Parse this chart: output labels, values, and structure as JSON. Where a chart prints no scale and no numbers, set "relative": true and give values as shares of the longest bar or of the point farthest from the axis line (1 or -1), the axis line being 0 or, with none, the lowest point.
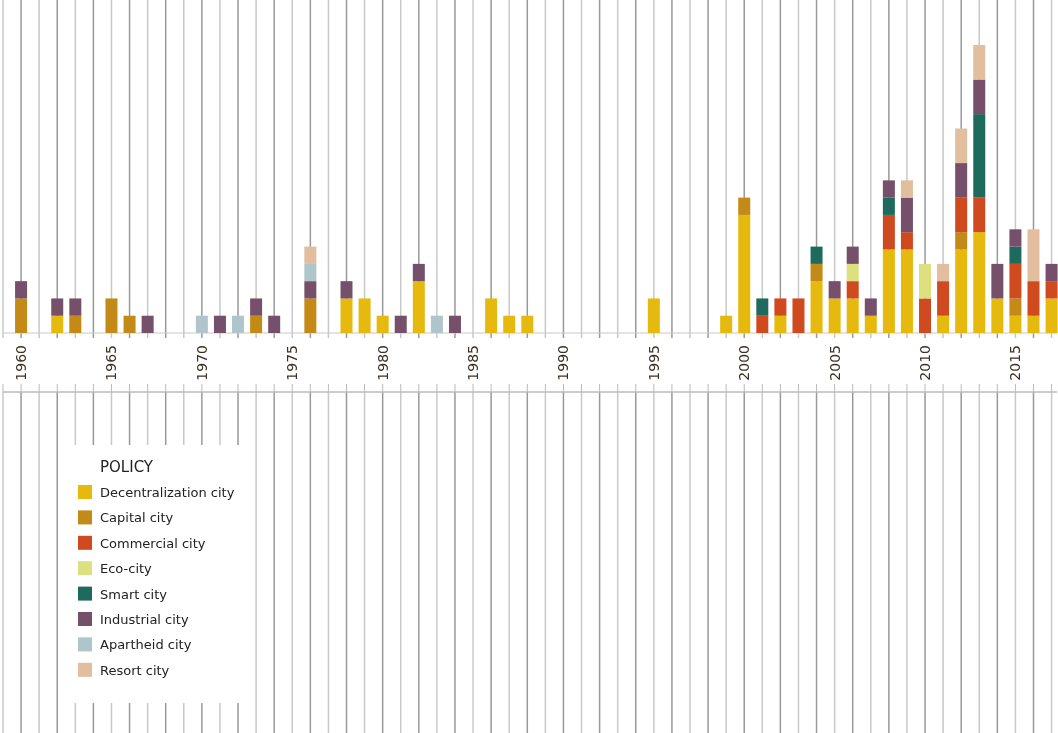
{
  "chart_data": {
    "type": "bar",
    "stacked": true,
    "relative": true,
    "legend_title": "POLICY",
    "legend": "bottom left",
    "grid": "x",
    "x": [
      1960,
      1961,
      1962,
      1963,
      1964,
      1965,
      1966,
      1967,
      1968,
      1969,
      1970,
      1971,
      1972,
      1973,
      1974,
      1975,
      1976,
      1977,
      1978,
      1979,
      1980,
      1981,
      1982,
      1983,
      1984,
      1985,
      1986,
      1987,
      1988,
      1989,
      1990,
      1991,
      1992,
      1993,
      1994,
      1995,
      1996,
      1997,
      1998,
      1999,
      2000,
      2001,
      2002,
      2003,
      2004,
      2005,
      2006,
      2007,
      2008,
      2009,
      2010,
      2011,
      2012,
      2013,
      2014,
      2015,
      2016,
      2017
    ],
    "xlim": [
      1959,
      2017.3
    ],
    "xticks": [
      {
        "value": 1959,
        "label": null
      },
      1960,
      {
        "value": 1961,
        "label": null
      },
      {
        "value": 1962,
        "label": null
      },
      {
        "value": 1963,
        "label": null
      },
      {
        "value": 1964,
        "label": null
      },
      1965,
      {
        "value": 1966,
        "label": null
      },
      {
        "value": 1967,
        "label": null
      },
      {
        "value": 1968,
        "label": null
      },
      {
        "value": 1969,
        "label": null
      },
      1970,
      {
        "value": 1971,
        "label": null
      },
      {
        "value": 1972,
        "label": null
      },
      {
        "value": 1973,
        "label": null
      },
      {
        "value": 1974,
        "label": null
      },
      1975,
      {
        "value": 1976,
        "label": null
      },
      {
        "value": 1977,
        "label": null
      },
      {
        "value": 1978,
        "label": null
      },
      {
        "value": 1979,
        "label": null
      },
      1980,
      {
        "value": 1981,
        "label": null
      },
      {
        "value": 1982,
        "label": null
      },
      {
        "value": 1983,
        "label": null
      },
      {
        "value": 1984,
        "label": null
      },
      1985,
      {
        "value": 1986,
        "label": null
      },
      {
        "value": 1987,
        "label": null
      },
      {
        "value": 1988,
        "label": null
      },
      {
        "value": 1989,
        "label": null
      },
      1990,
      {
        "value": 1991,
        "label": null
      },
      {
        "value": 1992,
        "label": null
      },
      {
        "value": 1993,
        "label": null
      },
      {
        "value": 1994,
        "label": null
      },
      1995,
      {
        "value": 1996,
        "label": null
      },
      {
        "value": 1997,
        "label": null
      },
      {
        "value": 1998,
        "label": null
      },
      {
        "value": 1999,
        "label": null
      },
      2000,
      {
        "value": 2001,
        "label": null
      },
      {
        "value": 2002,
        "label": null
      },
      {
        "value": 2003,
        "label": null
      },
      {
        "value": 2004,
        "label": null
      },
      2005,
      {
        "value": 2006,
        "label": null
      },
      {
        "value": 2007,
        "label": null
      },
      {
        "value": 2008,
        "label": null
      },
      {
        "value": 2009,
        "label": null
      },
      2010,
      {
        "value": 2011,
        "label": null
      },
      {
        "value": 2012,
        "label": null
      },
      {
        "value": 2013,
        "label": null
      },
      {
        "value": 2014,
        "label": null
      },
      2015,
      {
        "value": 2016,
        "label": null
      },
      {
        "value": 2017,
        "label": null
      }
    ],
    "series": [
      {
        "name": "Decentralization city",
        "color": "#e6b90e",
        "values": [
          null,
          null,
          0.06,
          null,
          null,
          null,
          null,
          null,
          null,
          null,
          null,
          null,
          null,
          null,
          null,
          null,
          null,
          null,
          0.12,
          0.12,
          0.06,
          null,
          0.18,
          null,
          null,
          null,
          0.12,
          0.06,
          0.06,
          null,
          null,
          null,
          null,
          null,
          null,
          0.12,
          null,
          null,
          null,
          0.06,
          0.41,
          null,
          0.06,
          null,
          0.18,
          0.12,
          0.12,
          0.06,
          0.29,
          0.29,
          null,
          0.06,
          0.29,
          0.35,
          0.12,
          0.06,
          0.06,
          0.12
        ]
      },
      {
        "name": "Capital city",
        "color": "#c48a17",
        "values": [
          0.12,
          null,
          null,
          0.06,
          null,
          0.12,
          0.06,
          null,
          null,
          null,
          null,
          null,
          null,
          0.06,
          null,
          null,
          0.12,
          null,
          null,
          null,
          null,
          null,
          null,
          null,
          null,
          null,
          null,
          null,
          null,
          null,
          null,
          null,
          null,
          null,
          null,
          null,
          null,
          null,
          null,
          null,
          0.06,
          null,
          null,
          null,
          0.06,
          null,
          null,
          null,
          null,
          null,
          null,
          null,
          0.06,
          null,
          null,
          0.06,
          null,
          null
        ]
      },
      {
        "name": "Commercial city",
        "color": "#d04a20",
        "values": [
          null,
          null,
          null,
          null,
          null,
          null,
          null,
          null,
          null,
          null,
          null,
          null,
          null,
          null,
          null,
          null,
          null,
          null,
          null,
          null,
          null,
          null,
          null,
          null,
          null,
          null,
          null,
          null,
          null,
          null,
          null,
          null,
          null,
          null,
          null,
          null,
          null,
          null,
          null,
          null,
          null,
          0.06,
          0.06,
          0.12,
          null,
          null,
          0.06,
          null,
          0.12,
          0.06,
          0.12,
          0.12,
          0.12,
          0.12,
          null,
          0.12,
          0.12,
          0.06
        ]
      },
      {
        "name": "Eco-city",
        "color": "#dde07e",
        "values": [
          null,
          null,
          null,
          null,
          null,
          null,
          null,
          null,
          null,
          null,
          null,
          null,
          null,
          null,
          null,
          null,
          null,
          null,
          null,
          null,
          null,
          null,
          null,
          null,
          null,
          null,
          null,
          null,
          null,
          null,
          null,
          null,
          null,
          null,
          null,
          null,
          null,
          null,
          null,
          null,
          null,
          null,
          null,
          null,
          null,
          null,
          0.06,
          null,
          null,
          null,
          0.12,
          null,
          null,
          null,
          null,
          null,
          null,
          null
        ]
      },
      {
        "name": "Smart city",
        "color": "#1e6b5e",
        "values": [
          null,
          null,
          null,
          null,
          null,
          null,
          null,
          null,
          null,
          null,
          null,
          null,
          null,
          null,
          null,
          null,
          null,
          null,
          null,
          null,
          null,
          null,
          null,
          null,
          null,
          null,
          null,
          null,
          null,
          null,
          null,
          null,
          null,
          null,
          null,
          null,
          null,
          null,
          null,
          null,
          null,
          0.06,
          null,
          null,
          0.06,
          null,
          null,
          null,
          0.06,
          null,
          null,
          null,
          null,
          0.29,
          null,
          0.06,
          null,
          null
        ]
      },
      {
        "name": "Industrial city",
        "color": "#76506a",
        "values": [
          0.06,
          null,
          0.06,
          0.06,
          null,
          null,
          null,
          0.06,
          null,
          null,
          null,
          0.06,
          null,
          0.06,
          0.06,
          null,
          0.06,
          null,
          0.06,
          null,
          null,
          0.06,
          0.06,
          null,
          0.06,
          null,
          null,
          null,
          null,
          null,
          null,
          null,
          null,
          null,
          null,
          null,
          null,
          null,
          null,
          null,
          null,
          null,
          null,
          null,
          null,
          0.06,
          0.06,
          0.06,
          0.06,
          0.12,
          null,
          null,
          0.12,
          0.12,
          0.12,
          0.06,
          null,
          0.06
        ]
      },
      {
        "name": "Apartheid city",
        "color": "#b0c4cc",
        "values": [
          null,
          null,
          null,
          null,
          null,
          null,
          null,
          null,
          null,
          null,
          0.06,
          null,
          0.06,
          null,
          null,
          null,
          0.06,
          null,
          null,
          null,
          null,
          null,
          null,
          0.06,
          null,
          null,
          null,
          null,
          null,
          null,
          null,
          null,
          null,
          null,
          null,
          null,
          null,
          null,
          null,
          null,
          null,
          null,
          null,
          null,
          null,
          null,
          null,
          null,
          null,
          null,
          null,
          null,
          null,
          null,
          null,
          null,
          null,
          null
        ]
      },
      {
        "name": "Resort city",
        "color": "#e2bd9e",
        "values": [
          null,
          null,
          null,
          null,
          null,
          null,
          null,
          null,
          null,
          null,
          null,
          null,
          null,
          null,
          null,
          null,
          0.06,
          null,
          null,
          null,
          null,
          null,
          null,
          null,
          null,
          null,
          null,
          null,
          null,
          null,
          null,
          null,
          null,
          null,
          null,
          null,
          null,
          null,
          null,
          null,
          null,
          null,
          null,
          null,
          null,
          null,
          null,
          null,
          null,
          0.06,
          null,
          0.06,
          0.12,
          0.12,
          null,
          null,
          0.18,
          null
        ]
      }
    ]
  }
}
